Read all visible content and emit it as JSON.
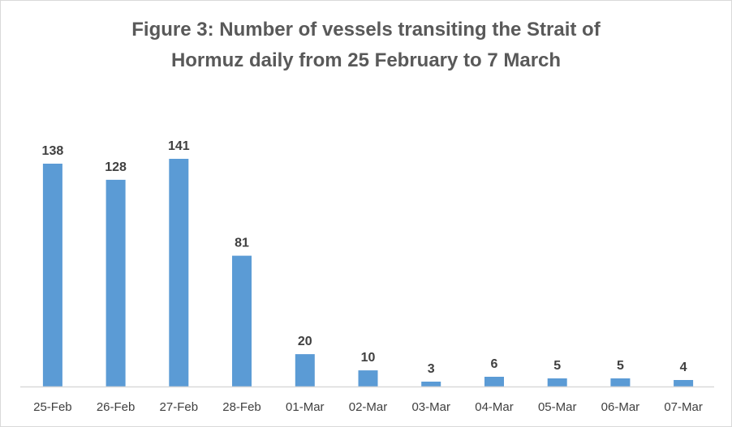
{
  "chart_data": {
    "type": "bar",
    "title": "Figure 3: Number of vessels transiting the Strait of Hormuz daily from 25 February to 7 March",
    "title_lines": [
      "Figure 3: Number of vessels transiting the Strait of",
      "Hormuz daily from 25 February to 7 March"
    ],
    "categories": [
      "25-Feb",
      "26-Feb",
      "27-Feb",
      "28-Feb",
      "01-Mar",
      "02-Mar",
      "03-Mar",
      "04-Mar",
      "05-Mar",
      "06-Mar",
      "07-Mar"
    ],
    "values": [
      138,
      128,
      141,
      81,
      20,
      10,
      3,
      6,
      5,
      5,
      4
    ],
    "data_labels": [
      "138",
      "128",
      "141",
      "81",
      "20",
      "10",
      "3",
      "6",
      "5",
      "5",
      "4"
    ],
    "ylim": [
      0,
      160
    ],
    "grid": false,
    "legend": "none",
    "bar_color": "#5b9bd5",
    "axis_color": "#d9d9d9",
    "text_color": "#404040",
    "title_color": "#595959"
  }
}
